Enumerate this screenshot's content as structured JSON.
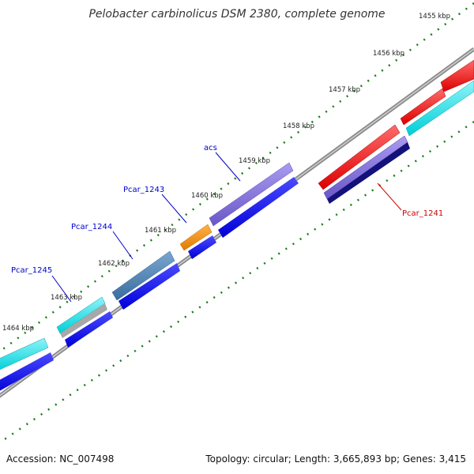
{
  "title": "Pelobacter carbinolicus DSM 2380, complete genome",
  "accession": "Accession: NC_007498",
  "topology": "Topology: circular; Length: 3,665,893 bp; Genes: 3,415",
  "ruler": [
    "1455 kbp",
    "1456 kbp",
    "1457 kbp",
    "1458 kbp",
    "1459 kbp",
    "1460 kbp",
    "1461 kbp",
    "1462 kbp",
    "1463 kbp",
    "1464 kbp"
  ],
  "gene_labels": [
    {
      "id": "acs",
      "text": "acs",
      "color": "#0000cc"
    },
    {
      "id": "pcar-1243",
      "text": "Pcar_1243",
      "color": "#0000cc"
    },
    {
      "id": "pcar-1244",
      "text": "Pcar_1244",
      "color": "#0000cc"
    },
    {
      "id": "pcar-1245",
      "text": "Pcar_1245",
      "color": "#0000cc"
    },
    {
      "id": "pcar-1241",
      "text": "Pcar_1241",
      "color": "#cc0000"
    }
  ],
  "colors": {
    "cds_forward": "#0000ee",
    "cds_reverse": "#ee0000",
    "cyan": "#00e0e8",
    "purple": "#7b68d8",
    "steel": "#4a7fb0",
    "orange": "#f08c00",
    "navy": "#12127a",
    "backbone": "#888888",
    "ticks": "#1a7a1a"
  }
}
